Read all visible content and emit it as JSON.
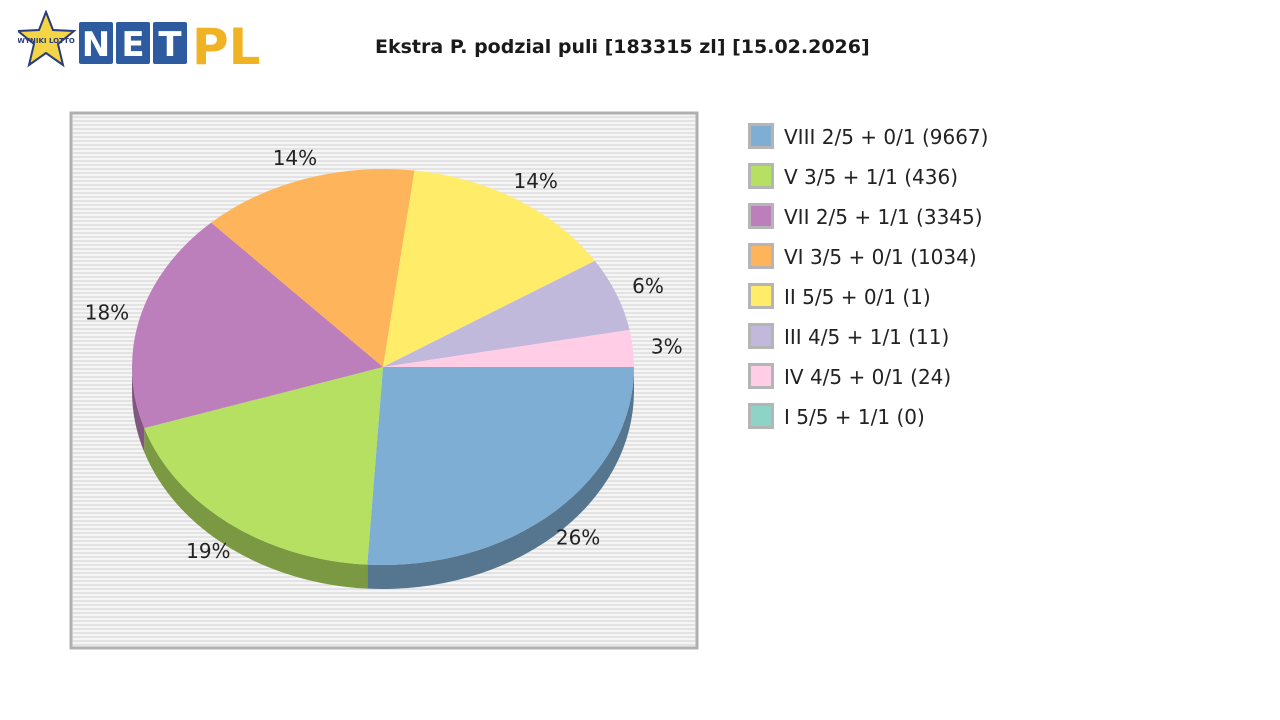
{
  "logo": {
    "badge_text": "WYNIKI LOTTO",
    "brand_left": "NET",
    "brand_right": "PL"
  },
  "chart_data": {
    "type": "pie",
    "title": "Ekstra P. podzial puli [183315 zl] [15.02.2026]",
    "slices": [
      {
        "label": "VIII 2/5 + 0/1 (9667)",
        "value": 26,
        "pct_label": "26%",
        "color": "#7eaed4"
      },
      {
        "label": "V 3/5 + 1/1 (436)",
        "value": 19,
        "pct_label": "19%",
        "color": "#b5e061"
      },
      {
        "label": "VII 2/5 + 1/1 (3345)",
        "value": 18,
        "pct_label": "18%",
        "color": "#bd7fbc"
      },
      {
        "label": "VI 3/5 + 0/1 (1034)",
        "value": 14,
        "pct_label": "14%",
        "color": "#feb45a"
      },
      {
        "label": "II 5/5 + 0/1 (1)",
        "value": 14,
        "pct_label": "14%",
        "color": "#ffec68"
      },
      {
        "label": "III 4/5 + 1/1 (11)",
        "value": 6,
        "pct_label": "6%",
        "color": "#c0b9db"
      },
      {
        "label": "IV 4/5 + 0/1 (24)",
        "value": 3,
        "pct_label": "3%",
        "color": "#ffcde6"
      },
      {
        "label": "I 5/5 + 1/1 (0)",
        "value": 0,
        "pct_label": "",
        "color": "#8dd3c6"
      }
    ]
  }
}
